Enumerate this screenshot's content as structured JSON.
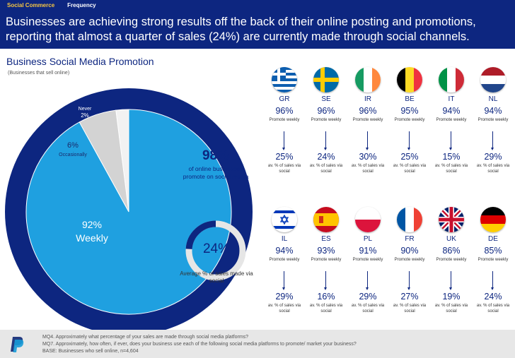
{
  "header": {
    "tabs": [
      {
        "label": "Social Commerce",
        "active": true
      },
      {
        "label": "Frequency",
        "active": false
      }
    ],
    "headline": "Businesses are achieving strong results off the back of their online posting and promotions, reporting that almost a quarter of sales (24%) are currently made through social channels."
  },
  "section": {
    "title": "Business Social Media Promotion",
    "subtitle": "(Businesses that sell online)"
  },
  "chart_data": [
    {
      "type": "pie",
      "title": "Business Social Media Promotion",
      "categories": [
        "Weekly",
        "Occasionally",
        "Never"
      ],
      "values": [
        92,
        6,
        2
      ],
      "labels": [
        "92%",
        "6%",
        "2%"
      ],
      "colors": [
        "#1fa0e0",
        "#d3d3d3",
        "#f2f2f2"
      ],
      "ring_color": "#0d2680"
    },
    {
      "type": "pie",
      "subtype": "donut",
      "value": 24,
      "label": "24%",
      "caption": "Average % of sales made via social",
      "colors": [
        "#0d2680",
        "#e6e6e6"
      ]
    }
  ],
  "summary": {
    "value": "98%",
    "caption": "of online businesses promote on social media"
  },
  "countries": [
    {
      "code": "GR",
      "promote": "96%",
      "sales": "25%"
    },
    {
      "code": "SE",
      "promote": "96%",
      "sales": "24%"
    },
    {
      "code": "IR",
      "promote": "96%",
      "sales": "30%"
    },
    {
      "code": "BE",
      "promote": "95%",
      "sales": "25%"
    },
    {
      "code": "IT",
      "promote": "94%",
      "sales": "15%"
    },
    {
      "code": "NL",
      "promote": "94%",
      "sales": "29%"
    },
    {
      "code": "IL",
      "promote": "94%",
      "sales": "29%"
    },
    {
      "code": "ES",
      "promote": "93%",
      "sales": "16%"
    },
    {
      "code": "PL",
      "promote": "91%",
      "sales": "29%"
    },
    {
      "code": "FR",
      "promote": "90%",
      "sales": "27%"
    },
    {
      "code": "UK",
      "promote": "86%",
      "sales": "19%"
    },
    {
      "code": "DE",
      "promote": "85%",
      "sales": "24%"
    }
  ],
  "labels": {
    "promote": "Promote weekly",
    "sales": "av. % of sales via social"
  },
  "footer": {
    "lines": [
      "MQ4. Approximately what percentage of your sales are made through social media platforms?",
      "MQ7. Approximately, how often, if ever, does your business use each of the following social media platforms to promote/ market your business?",
      "BASE: Businesses who sell online, n=4,604"
    ],
    "logo": "paypal-logo"
  }
}
